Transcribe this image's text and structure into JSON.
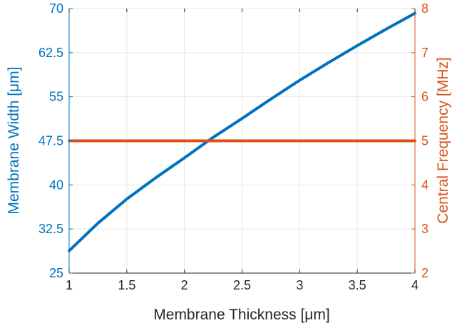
{
  "colors": {
    "left_axis": "#0072BD",
    "right_axis": "#D95319",
    "bottom_axis": "#262626",
    "grid": "#e6e6e6"
  },
  "chart_data": {
    "type": "line",
    "title": "",
    "xlabel": "Membrane Thickness [μm]",
    "ylabel_left": "Membrane Width [μm]",
    "ylabel_right": "Central Frequency [MHz]",
    "xlim": [
      1,
      4
    ],
    "ylim_left": [
      25,
      70
    ],
    "ylim_right": [
      2,
      8
    ],
    "x_ticks": [
      "1",
      "1.5",
      "2",
      "2.5",
      "3",
      "3.5",
      "4"
    ],
    "y_left_ticks": [
      "25",
      "32.5",
      "40",
      "47.5",
      "55",
      "62.5",
      "70"
    ],
    "y_right_ticks": [
      "2",
      "3",
      "4",
      "5",
      "6",
      "7",
      "8"
    ],
    "grid": true,
    "legend": "none",
    "series": [
      {
        "axis": "left",
        "color": "#0072BD",
        "x": [
          1.0,
          1.25,
          1.5,
          1.75,
          2.0,
          2.25,
          2.5,
          2.75,
          3.0,
          3.25,
          3.5,
          3.75,
          4.0
        ],
        "values": [
          28.8,
          33.5,
          37.6,
          41.2,
          44.6,
          48.1,
          51.3,
          54.6,
          57.8,
          60.8,
          63.7,
          66.5,
          69.2
        ]
      },
      {
        "axis": "right",
        "color": "#D95319",
        "x": [
          1.0,
          1.5,
          2.0,
          2.5,
          3.0,
          3.5,
          4.0
        ],
        "values": [
          5.0,
          5.0,
          5.0,
          5.0,
          5.0,
          5.0,
          5.0
        ]
      }
    ]
  }
}
